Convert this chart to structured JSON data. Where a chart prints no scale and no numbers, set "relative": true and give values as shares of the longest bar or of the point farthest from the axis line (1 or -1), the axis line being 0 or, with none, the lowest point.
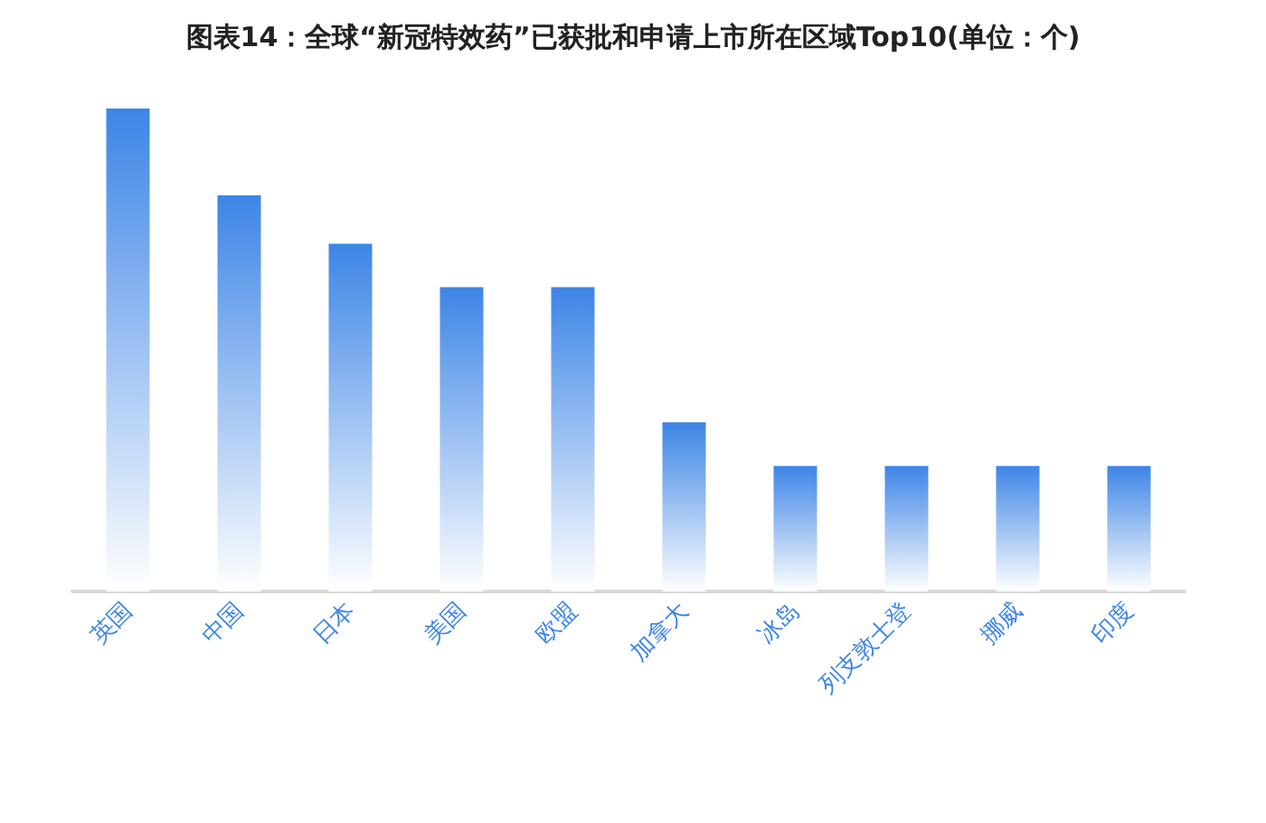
{
  "chart_data": {
    "type": "bar",
    "title": "图表14：全球“新冠特效药”已获批和申请上市所在区域Top10(单位：个)",
    "categories": [
      "英国",
      "中国",
      "日本",
      "美国",
      "欧盟",
      "加拿大",
      "冰岛",
      "列支敦士登",
      "挪威",
      "印度"
    ],
    "values": [
      1,
      0.82,
      0.72,
      0.63,
      0.63,
      0.35,
      0.26,
      0.26,
      0.26,
      0.26
    ],
    "color": "#3d85e6",
    "relative": true
  }
}
